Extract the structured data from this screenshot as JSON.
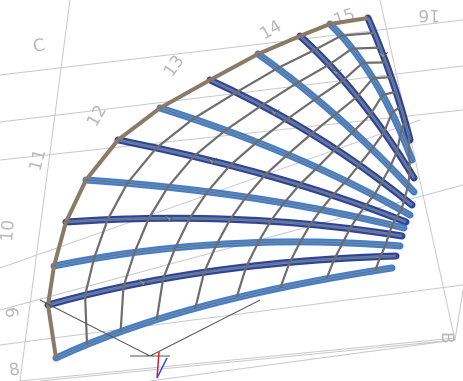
{
  "grid_labels": {
    "label_c": "C",
    "label_16": "16",
    "label_15": "15",
    "label_14": "14",
    "label_13": "13",
    "label_12": "12",
    "label_11": "11",
    "label_10": "10",
    "label_9": "9",
    "label_8": "8",
    "label_b": "B"
  },
  "colors": {
    "background": "#ffffff",
    "grid_line": "#c8c8c8",
    "steel_frame": "#6d6d6d",
    "outer_chord": "#8a7a66",
    "blue_dark": "#1b2f8e",
    "blue_mid": "#2f6fc8",
    "blue_light": "#6faee8",
    "axis_x": "#d02424",
    "axis_y": "#2850d8",
    "joint": "#7e9aa3"
  }
}
